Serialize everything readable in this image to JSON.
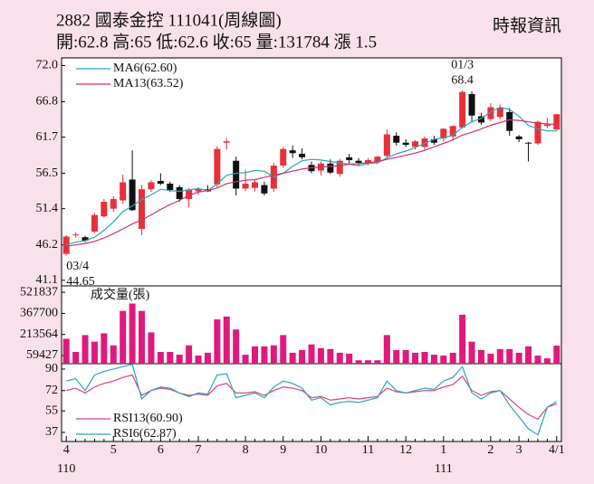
{
  "header": {
    "title": "2882 國泰金控 111041(周線圖)",
    "quote": "開:62.8 高:65 低:62.6 收:65 量:131784 漲 1.5",
    "source": "時報資訊"
  },
  "chart_data": [
    {
      "type": "candlestick",
      "up_color": "#e8303a",
      "down_color": "#111111",
      "ylim": [
        40.3,
        73.1
      ],
      "yticks": [
        41.1,
        46.2,
        51.4,
        56.5,
        61.7,
        66.8,
        {
          "value": 72,
          "label": "72.0"
        }
      ],
      "open": [
        44.9,
        47.6,
        47.3,
        48.1,
        50.3,
        51.4,
        52.6,
        55.6,
        48.5,
        54.2,
        55.4,
        55.0,
        54.5,
        52.8,
        53.9,
        54.2,
        54.9,
        60.9,
        58.3,
        54.3,
        54.4,
        54.8,
        54.3,
        57.6,
        59.8,
        59.3,
        57.7,
        56.9,
        57.9,
        56.4,
        58.8,
        58.3,
        57.9,
        58.1,
        59.0,
        61.9,
        60.9,
        60.3,
        60.3,
        61.4,
        61.5,
        61.8,
        63.1,
        67.9,
        64.7,
        64.3,
        64.6,
        65.3,
        61.8,
        60.9,
        60.8,
        63.3,
        62.8
      ],
      "high": [
        47.6,
        48,
        47.5,
        50.8,
        52.8,
        53.2,
        56.3,
        59.8,
        54.8,
        55.5,
        56.5,
        55.3,
        54.8,
        54.4,
        54.5,
        54.8,
        60.4,
        61.6,
        58.9,
        57.0,
        55.5,
        55.3,
        58.0,
        60.3,
        60.5,
        60.1,
        58.2,
        58.2,
        58.5,
        58.6,
        59.3,
        58.7,
        58.7,
        59.0,
        62.8,
        62.4,
        61.4,
        61.3,
        61.8,
        61.9,
        63.0,
        63.4,
        68.4,
        68.3,
        65.2,
        66.6,
        66.4,
        65.9,
        62.0,
        61.0,
        64.1,
        64.5,
        65
      ],
      "low": [
        44.65,
        47.2,
        46.6,
        47.9,
        50.1,
        51,
        52.1,
        51.1,
        47.6,
        53.8,
        54.8,
        53.8,
        52.4,
        51.6,
        53.4,
        53.8,
        54.5,
        59.9,
        53.3,
        53.9,
        53.9,
        53.3,
        53.8,
        57.3,
        58.7,
        58.5,
        56.5,
        56.2,
        56.4,
        56.0,
        57.9,
        57.6,
        57.6,
        57.8,
        58.8,
        60.5,
        60.3,
        59.9,
        59.9,
        60.6,
        61.1,
        61.2,
        62.9,
        63.8,
        63.5,
        64.0,
        64.3,
        61.9,
        61.0,
        58.2,
        60.6,
        63.0,
        62.6
      ],
      "close": [
        47.4,
        47.7,
        46.8,
        50.5,
        52.4,
        52.8,
        55.2,
        51.2,
        54.2,
        55.2,
        55.0,
        54.1,
        52.8,
        54.2,
        54.2,
        53.9,
        60.0,
        61.1,
        54.3,
        55.0,
        55.2,
        53.6,
        57.6,
        60.0,
        59.4,
        58.8,
        56.8,
        57.9,
        56.6,
        58.3,
        58.4,
        58.0,
        58.4,
        58.9,
        62.1,
        60.9,
        60.6,
        61.1,
        61.5,
        60.9,
        62.9,
        63.3,
        68.2,
        64.8,
        63.8,
        66.0,
        65.9,
        62.6,
        61.4,
        60.8,
        63.9,
        63.5,
        65
      ],
      "series": [
        {
          "name": "MA6(62.60)",
          "color": "#2aa6b8",
          "values": [
            46.2,
            46.6,
            46.8,
            47.3,
            48.3,
            49.5,
            51.0,
            51.8,
            52.7,
            53.4,
            54.2,
            54.0,
            53.9,
            54.1,
            54.3,
            54.0,
            55.0,
            56.2,
            56.5,
            56.6,
            56.9,
            56.8,
            56.0,
            56.5,
            57.5,
            58.3,
            58.5,
            58.4,
            58.2,
            58.0,
            57.8,
            57.6,
            57.9,
            58.0,
            58.7,
            59.3,
            59.7,
            60.2,
            60.8,
            61.4,
            61.6,
            62.0,
            63.1,
            63.9,
            64.4,
            65.3,
            66.0,
            65.7,
            64.7,
            63.4,
            62.9,
            62.6,
            62.6
          ]
        },
        {
          "name": "MA13(63.52)",
          "color": "#d2306c",
          "values": [
            46.0,
            46.2,
            46.4,
            46.7,
            47.2,
            47.8,
            48.5,
            49.2,
            49.8,
            50.5,
            51.3,
            52.0,
            52.6,
            53.3,
            53.8,
            54.0,
            54.4,
            55.0,
            55.3,
            55.5,
            55.6,
            55.9,
            56.2,
            56.5,
            56.8,
            57.1,
            57.3,
            57.4,
            57.5,
            57.6,
            57.8,
            57.9,
            58.0,
            58.2,
            58.5,
            58.8,
            59.1,
            59.4,
            59.8,
            60.3,
            60.8,
            61.3,
            62.0,
            62.4,
            62.9,
            63.4,
            63.8,
            64.2,
            64.1,
            63.9,
            63.7,
            63.6,
            63.52
          ]
        }
      ],
      "annotations": [
        {
          "label": "03/4",
          "value": 44.65,
          "at": "low"
        },
        {
          "label": "01/3",
          "value": 68.4,
          "at": "high"
        }
      ]
    },
    {
      "type": "bar",
      "ylim": [
        0,
        569000
      ],
      "yticks": [
        59427,
        213564,
        367700,
        521837
      ],
      "series": [
        {
          "name": "成交量(張)",
          "color": "#e0197d",
          "values": [
            182000,
            86000,
            209000,
            161000,
            222000,
            134000,
            386000,
            440000,
            386000,
            229000,
            86000,
            86000,
            66000,
            134000,
            59000,
            80000,
            324000,
            345000,
            250000,
            66000,
            127000,
            127000,
            134000,
            209000,
            80000,
            100000,
            141000,
            114000,
            107000,
            80000,
            73000,
            25000,
            25000,
            25000,
            209000,
            100000,
            100000,
            80000,
            86000,
            66000,
            59000,
            80000,
            358000,
            161000,
            100000,
            73000,
            107000,
            107000,
            80000,
            127000,
            59000,
            39000,
            131784
          ]
        }
      ]
    },
    {
      "type": "line",
      "ylim": [
        29.4,
        94.5
      ],
      "yticks": [
        37,
        55,
        72,
        90
      ],
      "categories": [
        "4",
        null,
        null,
        null,
        null,
        "5",
        null,
        null,
        null,
        null,
        "6",
        null,
        null,
        null,
        "7",
        null,
        null,
        null,
        null,
        "8",
        null,
        null,
        null,
        "9",
        null,
        null,
        null,
        "10",
        null,
        null,
        null,
        null,
        "11",
        null,
        null,
        null,
        "12",
        null,
        null,
        null,
        "1",
        null,
        null,
        null,
        null,
        "2",
        null,
        null,
        "3",
        null,
        null,
        null,
        "4/1"
      ],
      "year_labels": [
        "110",
        null,
        null,
        null,
        null,
        null,
        null,
        null,
        null,
        null,
        null,
        null,
        null,
        null,
        null,
        null,
        null,
        null,
        null,
        null,
        null,
        null,
        null,
        null,
        null,
        null,
        null,
        null,
        null,
        null,
        null,
        null,
        null,
        null,
        null,
        null,
        null,
        null,
        null,
        null,
        "111",
        null,
        null,
        null,
        null,
        null,
        null,
        null,
        null,
        null,
        null,
        null,
        null
      ],
      "series": [
        {
          "name": "RSI13(60.90)",
          "color": "#d8457a",
          "values": [
            72,
            74,
            70,
            75,
            78,
            80,
            83,
            85,
            68,
            72,
            74,
            73,
            70,
            68,
            69,
            68,
            76,
            78,
            70,
            70,
            71,
            68,
            72,
            75,
            74,
            72,
            66,
            67,
            64,
            65,
            66,
            65,
            66,
            67,
            74,
            71,
            70,
            71,
            72,
            72,
            75,
            77,
            84,
            72,
            68,
            71,
            72,
            65,
            58,
            52,
            48,
            58,
            60.9
          ]
        },
        {
          "name": "RSI6(62.87)",
          "color": "#2aa6b8",
          "values": [
            80,
            82,
            72,
            85,
            88,
            90,
            92,
            94,
            65,
            72,
            75,
            74,
            70,
            67,
            70,
            69,
            85,
            86,
            66,
            68,
            70,
            66,
            75,
            80,
            78,
            74,
            64,
            66,
            60,
            62,
            63,
            62,
            64,
            66,
            80,
            72,
            70,
            72,
            74,
            73,
            80,
            83,
            92,
            70,
            65,
            70,
            72,
            60,
            50,
            40,
            35,
            58,
            62.87
          ]
        }
      ]
    }
  ]
}
